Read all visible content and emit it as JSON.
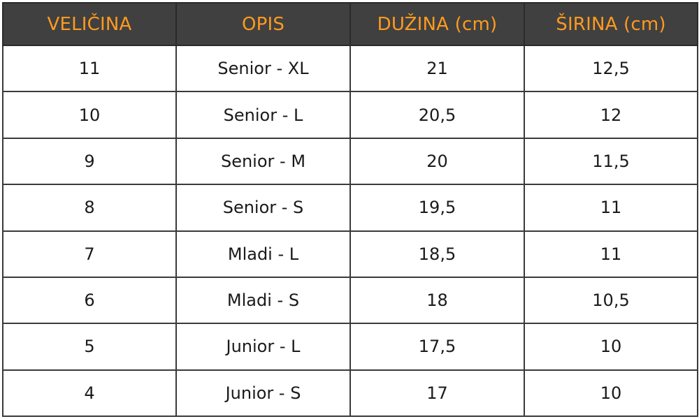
{
  "table": {
    "headers": [
      "VELIČINA",
      "OPIS",
      "DUŽINA (cm)",
      "ŠIRINA (cm)"
    ],
    "rows": [
      [
        "11",
        "Senior - XL",
        "21",
        "12,5"
      ],
      [
        "10",
        "Senior - L",
        "20,5",
        "12"
      ],
      [
        "9",
        "Senior - M",
        "20",
        "11,5"
      ],
      [
        "8",
        "Senior - S",
        "19,5",
        "11"
      ],
      [
        "7",
        "Mladi - L",
        "18,5",
        "11"
      ],
      [
        "6",
        "Mladi - S",
        "18",
        "10,5"
      ],
      [
        "5",
        "Junior - L",
        "17,5",
        "10"
      ],
      [
        "4",
        "Junior - S",
        "17",
        "10"
      ]
    ]
  },
  "colors": {
    "header_background": "#404040",
    "header_text": "#ff9a1f",
    "cell_text": "#1a1a1a",
    "grid_lines": "#3a3a3a"
  }
}
